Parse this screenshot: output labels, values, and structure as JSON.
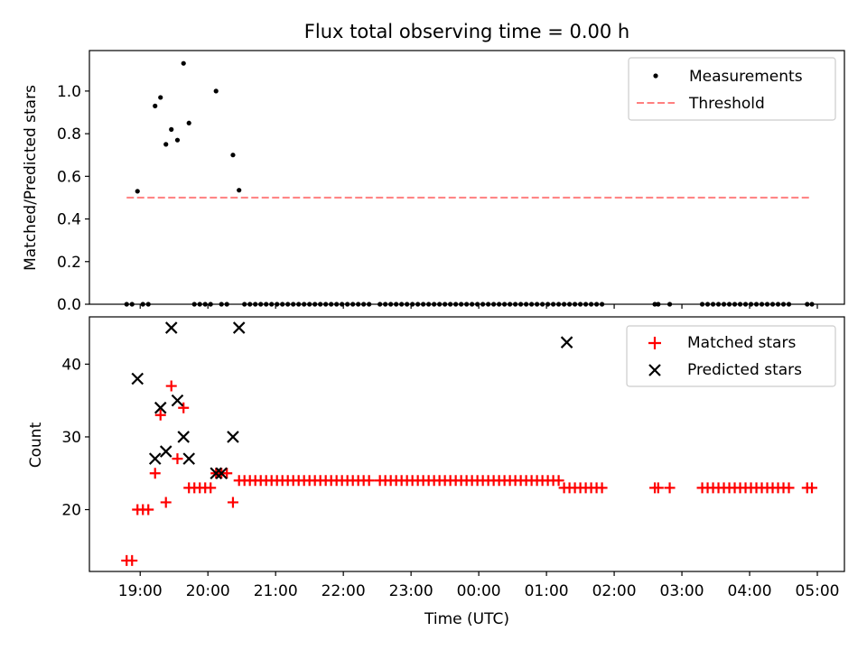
{
  "chart_data": [
    {
      "type": "scatter",
      "title": "Flux total observing time = 0.00 h",
      "xlabel": "",
      "ylabel": "Matched/Predicted stars",
      "x_unit": "hours after 00:00 UTC (18.8 = 18:48)",
      "xlim": [
        18.25,
        29.4
      ],
      "ylim": [
        0.0,
        1.19
      ],
      "yticks": [
        "0.0",
        "0.2",
        "0.4",
        "0.6",
        "0.8",
        "1.0"
      ],
      "ytick_values": [
        0.0,
        0.2,
        0.4,
        0.6,
        0.8,
        1.0
      ],
      "legend_position": "top-right",
      "series": [
        {
          "name": "Measurements",
          "kind": "dot",
          "color": "#000000",
          "x": [
            18.8,
            18.88,
            18.96,
            19.04,
            19.12,
            19.22,
            19.3,
            19.38,
            19.46,
            19.55,
            19.64,
            19.72,
            19.8,
            19.88,
            19.96,
            20.04,
            20.12,
            20.2,
            20.28,
            20.37,
            20.46,
            20.54,
            20.62,
            20.7,
            20.78,
            20.86,
            20.94,
            21.02,
            21.1,
            21.18,
            21.26,
            21.34,
            21.42,
            21.5,
            21.58,
            21.66,
            21.74,
            21.82,
            21.9,
            21.98,
            22.06,
            22.14,
            22.22,
            22.3,
            22.38,
            22.54,
            22.62,
            22.7,
            22.78,
            22.86,
            22.94,
            23.02,
            23.1,
            23.18,
            23.26,
            23.34,
            23.42,
            23.5,
            23.58,
            23.66,
            23.74,
            23.82,
            23.9,
            23.98,
            24.06,
            24.14,
            24.22,
            24.3,
            24.38,
            24.46,
            24.54,
            24.62,
            24.7,
            24.78,
            24.86,
            24.94,
            25.02,
            25.1,
            25.18,
            25.26,
            25.34,
            25.42,
            25.5,
            25.58,
            25.66,
            25.74,
            25.82,
            26.6,
            26.65,
            26.82,
            27.3,
            27.38,
            27.46,
            27.54,
            27.62,
            27.7,
            27.78,
            27.86,
            27.94,
            28.02,
            28.1,
            28.18,
            28.26,
            28.34,
            28.42,
            28.5,
            28.58,
            28.85,
            28.92
          ],
          "y": [
            0,
            0,
            0.53,
            0,
            0,
            0.93,
            0.97,
            0.75,
            0.82,
            0.77,
            1.13,
            0.85,
            0,
            0,
            0,
            0,
            1.0,
            0,
            0,
            0.7,
            0.535,
            0,
            0,
            0,
            0,
            0,
            0,
            0,
            0,
            0,
            0,
            0,
            0,
            0,
            0,
            0,
            0,
            0,
            0,
            0,
            0,
            0,
            0,
            0,
            0,
            0,
            0,
            0,
            0,
            0,
            0,
            0,
            0,
            0,
            0,
            0,
            0,
            0,
            0,
            0,
            0,
            0,
            0,
            0,
            0,
            0,
            0,
            0,
            0,
            0,
            0,
            0,
            0,
            0,
            0,
            0,
            0,
            0,
            0,
            0,
            0,
            0,
            0,
            0,
            0,
            0,
            0,
            0,
            0,
            0,
            0,
            0,
            0,
            0,
            0,
            0,
            0,
            0,
            0,
            0,
            0,
            0,
            0,
            0,
            0,
            0,
            0,
            0,
            0
          ]
        },
        {
          "name": "Threshold",
          "kind": "dashed-line",
          "color": "#ff7f7f",
          "x": [
            18.8,
            28.9
          ],
          "y": [
            0.5,
            0.5
          ]
        }
      ]
    },
    {
      "type": "scatter",
      "title": "",
      "xlabel": "Time (UTC)",
      "ylabel": "Count",
      "x_unit": "hours after 00:00 UTC (18.8 = 18:48)",
      "xlim": [
        18.25,
        29.4
      ],
      "ylim": [
        11.5,
        46.5
      ],
      "yticks": [
        "20",
        "30",
        "40"
      ],
      "ytick_values": [
        20,
        30,
        40
      ],
      "xticks": [
        "19:00",
        "20:00",
        "21:00",
        "22:00",
        "23:00",
        "00:00",
        "01:00",
        "02:00",
        "03:00",
        "04:00",
        "05:00"
      ],
      "xtick_values": [
        19,
        20,
        21,
        22,
        23,
        24,
        25,
        26,
        27,
        28,
        29
      ],
      "legend_position": "top-right",
      "series": [
        {
          "name": "Matched stars",
          "kind": "plus",
          "color": "#ff0000",
          "x": [
            18.8,
            18.88,
            18.96,
            19.04,
            19.12,
            19.22,
            19.3,
            19.38,
            19.46,
            19.55,
            19.64,
            19.72,
            19.8,
            19.88,
            19.96,
            20.04,
            20.12,
            20.2,
            20.28,
            20.37,
            20.46,
            20.54,
            20.62,
            20.7,
            20.78,
            20.86,
            20.94,
            21.02,
            21.1,
            21.18,
            21.26,
            21.34,
            21.42,
            21.5,
            21.58,
            21.66,
            21.74,
            21.82,
            21.9,
            21.98,
            22.06,
            22.14,
            22.22,
            22.3,
            22.38,
            22.54,
            22.62,
            22.7,
            22.78,
            22.86,
            22.94,
            23.02,
            23.1,
            23.18,
            23.26,
            23.34,
            23.42,
            23.5,
            23.58,
            23.66,
            23.74,
            23.82,
            23.9,
            23.98,
            24.06,
            24.14,
            24.22,
            24.3,
            24.38,
            24.46,
            24.54,
            24.62,
            24.7,
            24.78,
            24.86,
            24.94,
            25.02,
            25.1,
            25.18,
            25.26,
            25.34,
            25.42,
            25.5,
            25.58,
            25.66,
            25.74,
            25.82,
            26.6,
            26.65,
            26.82,
            27.3,
            27.38,
            27.46,
            27.54,
            27.62,
            27.7,
            27.78,
            27.86,
            27.94,
            28.02,
            28.1,
            28.18,
            28.26,
            28.34,
            28.42,
            28.5,
            28.58,
            28.85,
            28.92
          ],
          "y": [
            13,
            13,
            20,
            20,
            20,
            25,
            33,
            21,
            37,
            27,
            34,
            23,
            23,
            23,
            23,
            23,
            25,
            25,
            25,
            21,
            24,
            24,
            24,
            24,
            24,
            24,
            24,
            24,
            24,
            24,
            24,
            24,
            24,
            24,
            24,
            24,
            24,
            24,
            24,
            24,
            24,
            24,
            24,
            24,
            24,
            24,
            24,
            24,
            24,
            24,
            24,
            24,
            24,
            24,
            24,
            24,
            24,
            24,
            24,
            24,
            24,
            24,
            24,
            24,
            24,
            24,
            24,
            24,
            24,
            24,
            24,
            24,
            24,
            24,
            24,
            24,
            24,
            24,
            24,
            23,
            23,
            23,
            23,
            23,
            23,
            23,
            23,
            23,
            23,
            23,
            23,
            23,
            23,
            23,
            23,
            23,
            23,
            23,
            23,
            23,
            23,
            23,
            23,
            23,
            23,
            23,
            23,
            23,
            23
          ]
        },
        {
          "name": "Predicted stars",
          "kind": "cross",
          "color": "#000000",
          "x": [
            18.96,
            19.22,
            19.3,
            19.38,
            19.46,
            19.55,
            19.64,
            19.72,
            20.12,
            20.2,
            20.37,
            20.46,
            25.3
          ],
          "y": [
            38,
            27,
            34,
            28,
            45,
            35,
            30,
            27,
            25,
            25,
            30,
            45,
            43
          ]
        }
      ]
    }
  ]
}
